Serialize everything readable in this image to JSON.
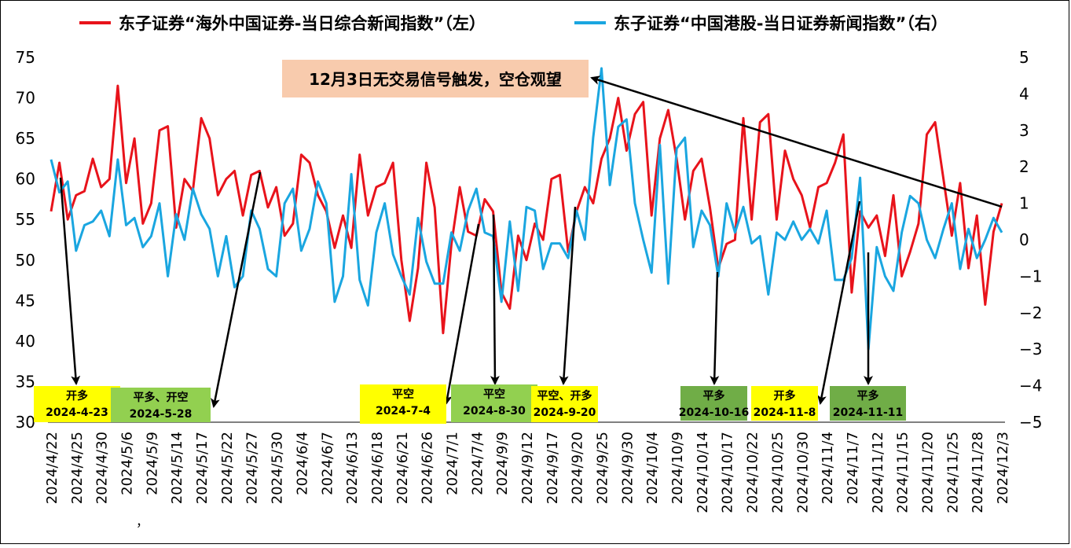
{
  "chart_data": {
    "type": "line",
    "title": "",
    "xlabel": "",
    "ylabel": "",
    "y_left_lim": [
      30,
      75
    ],
    "y_left_ticks": [
      30,
      35,
      40,
      45,
      50,
      55,
      60,
      65,
      70,
      75
    ],
    "y_right_lim": [
      -5,
      5
    ],
    "y_right_ticks": [
      -5,
      -4,
      -3,
      -2,
      -1,
      0,
      1,
      2,
      3,
      4,
      5
    ],
    "legend_position": "top",
    "x_tick_labels": [
      "2024/4/22",
      "2024/4/25",
      "2024/4/30",
      "2024/5/6",
      "2024/5/9",
      "2024/5/14",
      "2024/5/17",
      "2024/5/22",
      "2024/5/27",
      "2024/5/30",
      "2024/6/4",
      "2024/6/7",
      "2024/6/13",
      "2024/6/18",
      "2024/6/21",
      "2024/6/26",
      "2024/7/1",
      "2024/7/4",
      "2024/9/9",
      "2024/9/12",
      "2024/9/17",
      "2024/9/20",
      "2024/9/25",
      "2024/9/30",
      "2024/10/4",
      "2024/10/9",
      "2024/10/14",
      "2024/10/17",
      "2024/10/22",
      "2024/10/25",
      "2024/10/30",
      "2024/11/4",
      "2024/11/7",
      "2024/11/12",
      "2024/11/15",
      "2024/11/20",
      "2024/11/25",
      "2024/11/28",
      "2024/12/3"
    ],
    "stray_mark": "，",
    "series": [
      {
        "name": "东子证券“海外中国证券-当日综合新闻指数”（左）",
        "axis": "left",
        "color": "#E8131B",
        "values": [
          56,
          62,
          55,
          58,
          58.5,
          62.5,
          59,
          60,
          71.5,
          59.5,
          65,
          54.5,
          57,
          66,
          66.5,
          54,
          60,
          58.5,
          67.5,
          65,
          58,
          60,
          61,
          55.5,
          60.5,
          61,
          56.5,
          59,
          53,
          54.5,
          63,
          62,
          58,
          56,
          51.5,
          55.5,
          51.5,
          63,
          55.5,
          59,
          59.5,
          62,
          50,
          42.5,
          49,
          62,
          56.5,
          41,
          52,
          59,
          53.5,
          53,
          57.5,
          56,
          46,
          44,
          53,
          50,
          54.5,
          52.5,
          60,
          60.5,
          51,
          56,
          59,
          57,
          62.5,
          65,
          70,
          63.5,
          68,
          69.5,
          55.5,
          65,
          68.5,
          62.5,
          55,
          61,
          62.5,
          56.5,
          49,
          52,
          52.5,
          67.5,
          55,
          67,
          68,
          55,
          63.5,
          60,
          58,
          54,
          59,
          59.5,
          62,
          65.5,
          46,
          56,
          54,
          55.5,
          50.5,
          58,
          48,
          51,
          54.5,
          65.5,
          67,
          60,
          53,
          59.5,
          49,
          55.5,
          44.5,
          53.5,
          57
        ]
      },
      {
        "name": "东子证券“中国港股-当日证券新闻指数”（右）",
        "axis": "right",
        "color": "#1AA6E0",
        "values": [
          2.2,
          1.3,
          1.6,
          -0.3,
          0.4,
          0.5,
          0.8,
          0.1,
          2.2,
          0.4,
          0.6,
          -0.2,
          0.1,
          1,
          -1,
          0.7,
          0,
          1.4,
          0.7,
          0.3,
          -1,
          0.1,
          -1.3,
          -1,
          0.8,
          0.3,
          -0.8,
          -1,
          1,
          1.4,
          -0.3,
          0.3,
          1.6,
          1,
          -1.7,
          -1,
          1.8,
          -1.1,
          -1.8,
          0.2,
          1,
          -0.4,
          -1,
          -1.5,
          0.6,
          -0.6,
          -1.2,
          -1.2,
          0.2,
          -0.3,
          0.8,
          1.4,
          0.2,
          0.1,
          -1.7,
          0.5,
          -1.4,
          0.9,
          0.8,
          -0.8,
          -0.1,
          -0.1,
          -0.5,
          0.8,
          0,
          2.8,
          4.7,
          1.5,
          3.1,
          3.3,
          1,
          0,
          -0.9,
          2.6,
          -1.2,
          2.5,
          2.8,
          -0.2,
          0.8,
          0.4,
          -1,
          1,
          0.2,
          0.9,
          -0.1,
          0.1,
          -1.5,
          0.2,
          0,
          0.5,
          0,
          0.3,
          -0.1,
          0.8,
          -1.1,
          -1.1,
          -0.5,
          1.7,
          -3,
          -0.2,
          -1,
          -1.4,
          0.2,
          1.2,
          1,
          0,
          -0.5,
          0.3,
          1,
          -0.8,
          0.3,
          -0.5,
          0,
          0.6,
          0.2
        ]
      }
    ],
    "signals": [
      {
        "label": "开多",
        "date": "2024-4-23",
        "color": "#FFFF00"
      },
      {
        "label": "平多、开空",
        "date": "2024-5-28",
        "color": "#92D050"
      },
      {
        "label": "平空",
        "date": "2024-7-4",
        "color": "#FFFF00"
      },
      {
        "label": "平空",
        "date": "2024-8-30",
        "color": "#92D050"
      },
      {
        "label": "平空、开多",
        "date": "2024-9-20",
        "color": "#FFFF00"
      },
      {
        "label": "平多",
        "date": "2024-10-16",
        "color": "#70AD47"
      },
      {
        "label": "开多",
        "date": "2024-11-8",
        "color": "#FFFF00"
      },
      {
        "label": "平多",
        "date": "2024-11-11",
        "color": "#70AD47"
      }
    ],
    "annotation": {
      "text": "12月3日无交易信号触发，空仓观望",
      "color": "#F8CBAD"
    }
  }
}
